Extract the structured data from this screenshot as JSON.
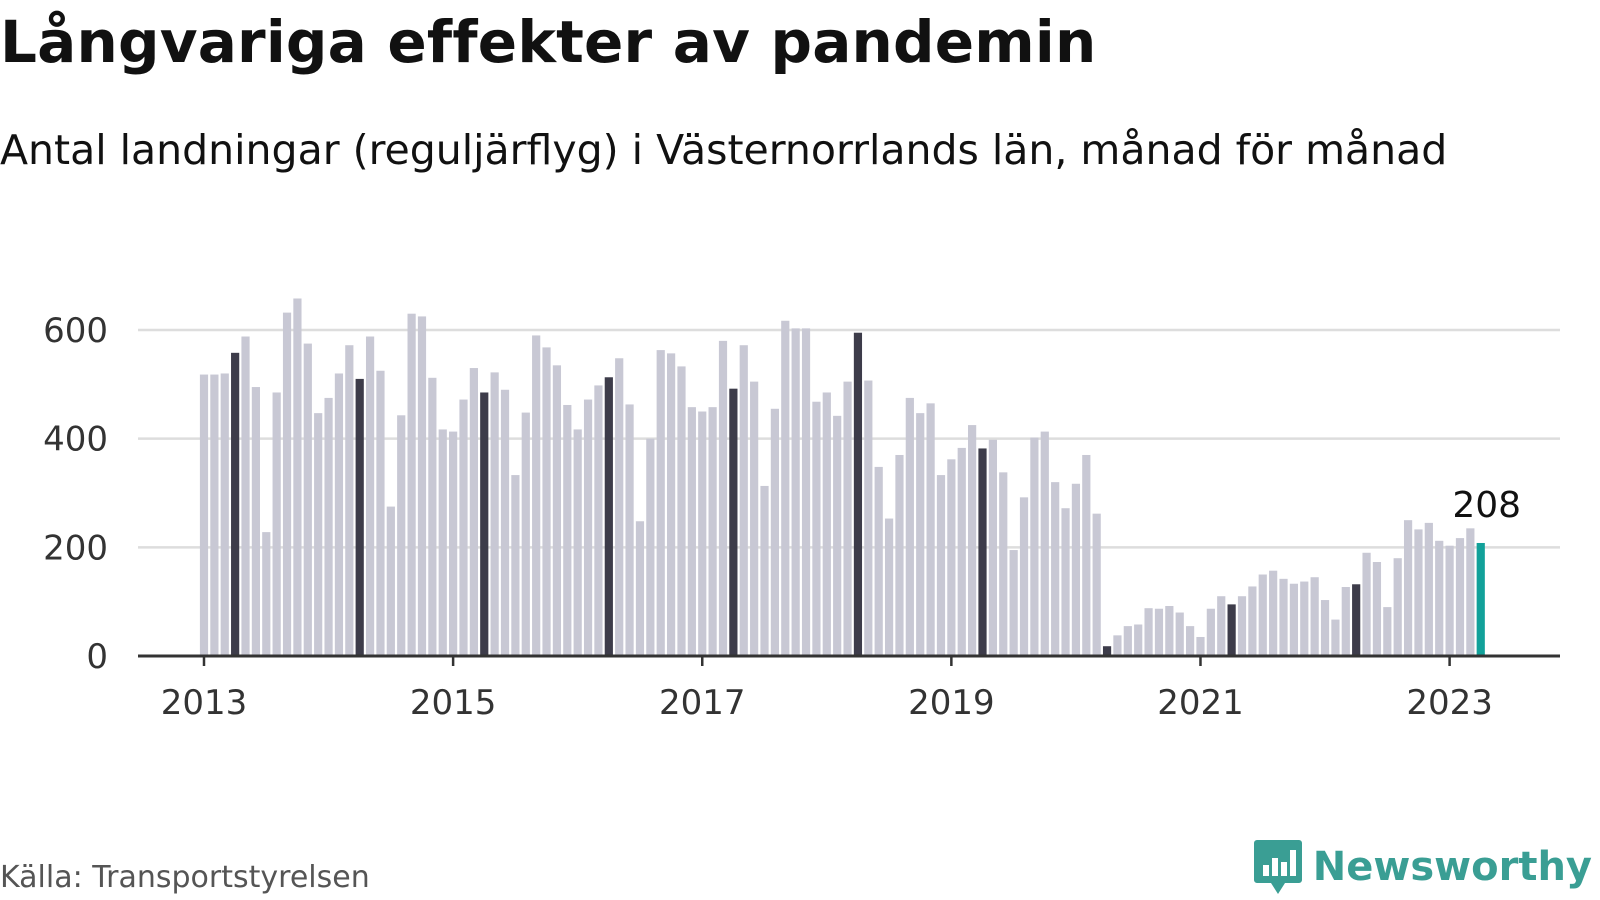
{
  "title": "Långvariga effekter av pandemin",
  "subtitle": "Antal landningar (reguljärflyg) i Västernorrlands län, månad för månad",
  "source": "Källa: Transportstyrelsen",
  "brand": {
    "name": "Newsworthy",
    "icon": "newsworthy-logo-icon",
    "color": "#3a9e94"
  },
  "colors": {
    "bar": "#c8c8d4",
    "april_bar": "#3d3c4a",
    "latest_bar": "#12a19a",
    "grid": "#dddddd",
    "axis": "#333333"
  },
  "chart_data": {
    "type": "bar",
    "start": "2013-01",
    "ylim": [
      0,
      700
    ],
    "yticks": [
      "0",
      "200",
      "400",
      "600"
    ],
    "xticks": [
      "2013",
      "2015",
      "2017",
      "2019",
      "2021",
      "2023"
    ],
    "highlight": "april bars dark, latest bar teal",
    "latest_label": "208",
    "values": [
      518,
      518,
      520,
      558,
      588,
      495,
      228,
      485,
      632,
      658,
      575,
      447,
      475,
      520,
      572,
      510,
      588,
      525,
      275,
      443,
      630,
      625,
      512,
      417,
      413,
      472,
      530,
      485,
      522,
      490,
      333,
      448,
      590,
      568,
      535,
      462,
      417,
      472,
      498,
      513,
      548,
      463,
      248,
      400,
      563,
      557,
      533,
      458,
      450,
      458,
      580,
      492,
      572,
      505,
      313,
      455,
      617,
      603,
      603,
      468,
      485,
      442,
      505,
      595,
      507,
      348,
      253,
      370,
      475,
      447,
      465,
      333,
      362,
      383,
      425,
      382,
      398,
      338,
      195,
      292,
      402,
      413,
      320,
      272,
      317,
      370,
      262,
      18,
      38,
      55,
      58,
      88,
      87,
      92,
      80,
      55,
      35,
      87,
      110,
      95,
      110,
      128,
      150,
      157,
      142,
      133,
      137,
      145,
      103,
      67,
      127,
      132,
      190,
      173,
      90,
      180,
      250,
      233,
      245,
      212,
      203,
      217,
      235,
      208
    ]
  }
}
